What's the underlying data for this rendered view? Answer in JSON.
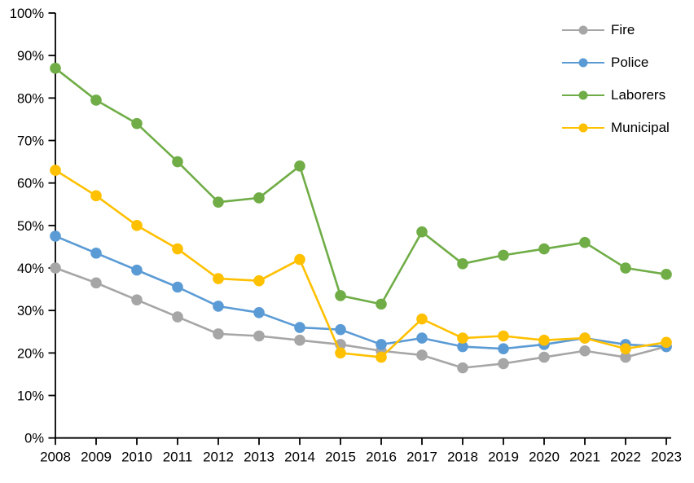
{
  "chart_data": {
    "type": "line",
    "title": "",
    "xlabel": "",
    "ylabel": "",
    "grid": false,
    "background": "#FFFFFF",
    "axis_color": "#000000",
    "marker": "circle",
    "x_categories": [
      "2008",
      "2009",
      "2010",
      "2011",
      "2012",
      "2013",
      "2014",
      "2015",
      "2016",
      "2017",
      "2018",
      "2019",
      "2020",
      "2021",
      "2022",
      "2023"
    ],
    "y_axis": {
      "min": 0,
      "max": 100,
      "step": 10,
      "tick_suffix": "%",
      "labels": [
        "0%",
        "10%",
        "20%",
        "30%",
        "40%",
        "50%",
        "60%",
        "70%",
        "80%",
        "90%",
        "100%"
      ]
    },
    "legend": {
      "position": "top-right",
      "entries": [
        "Fire",
        "Police",
        "Laborers",
        "Municipal"
      ]
    },
    "series": [
      {
        "name": "Fire",
        "color": "#A6A6A6",
        "values": [
          40,
          36.5,
          32.5,
          28.5,
          24.5,
          24,
          23,
          22,
          20.5,
          19.5,
          16.5,
          17.5,
          19,
          20.5,
          19,
          21.5
        ]
      },
      {
        "name": "Police",
        "color": "#5B9BD5",
        "values": [
          47.5,
          43.5,
          39.5,
          35.5,
          31,
          29.5,
          26,
          25.5,
          22,
          23.5,
          21.5,
          21,
          22,
          23.5,
          22,
          21.5
        ]
      },
      {
        "name": "Laborers",
        "color": "#70AD47",
        "values": [
          87,
          79.5,
          74,
          65,
          55.5,
          56.5,
          64,
          33.5,
          31.5,
          48.5,
          41,
          43,
          44.5,
          46,
          40,
          38.5
        ]
      },
      {
        "name": "Municipal",
        "color": "#FFC000",
        "values": [
          63,
          57,
          50,
          44.5,
          37.5,
          37,
          42,
          20,
          19,
          28,
          23.5,
          24,
          23,
          23.5,
          21,
          22.5
        ]
      }
    ]
  }
}
